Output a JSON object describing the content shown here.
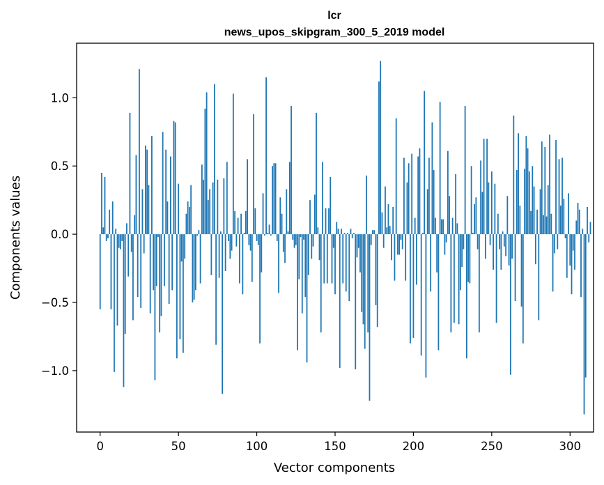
{
  "chart_data": {
    "type": "bar",
    "title": "lcr",
    "subtitle": "news_upos_skipgram_300_5_2019 model",
    "xlabel": "Vector components",
    "ylabel": "Components values",
    "xlim": [
      -15,
      315
    ],
    "ylim": [
      -1.45,
      1.4
    ],
    "xticks": [
      0,
      50,
      100,
      150,
      200,
      250,
      300
    ],
    "xtick_labels": [
      "0",
      "50",
      "100",
      "150",
      "200",
      "250",
      "300"
    ],
    "yticks": [
      -1.0,
      -0.5,
      0.0,
      0.5,
      1.0
    ],
    "ytick_labels": [
      "−1.0",
      "−0.5",
      "0.0",
      "0.5",
      "1.0"
    ],
    "bar_color": "#1f77b4",
    "values": [
      -0.55,
      0.45,
      0.05,
      0.42,
      -0.05,
      -0.03,
      0.18,
      -0.55,
      0.24,
      -1.01,
      0.04,
      -0.67,
      -0.1,
      -0.11,
      -0.05,
      -1.12,
      -0.73,
      0.08,
      -0.31,
      0.89,
      -0.13,
      -0.63,
      0.14,
      0.58,
      -0.46,
      1.21,
      -0.54,
      0.33,
      -0.14,
      0.65,
      0.62,
      0.36,
      -0.58,
      0.72,
      -0.41,
      -1.07,
      -0.38,
      -0.02,
      -0.72,
      -0.6,
      0.75,
      -0.38,
      0.62,
      0.24,
      -0.51,
      0.57,
      -0.41,
      0.83,
      0.82,
      -0.91,
      0.37,
      -0.77,
      -0.2,
      -0.87,
      -0.18,
      0.15,
      0.24,
      0.2,
      0.36,
      -0.5,
      -0.48,
      -0.41,
      -0.01,
      0.03,
      -0.36,
      0.51,
      0.4,
      0.92,
      1.04,
      0.25,
      0.33,
      -0.3,
      0.38,
      1.1,
      -0.81,
      0.4,
      -0.32,
      0.02,
      -1.17,
      0.41,
      -0.27,
      0.53,
      -0.05,
      -0.18,
      -0.12,
      1.03,
      0.17,
      -0.09,
      0.12,
      -0.36,
      0.15,
      -0.44,
      0.01,
      0.17,
      0.55,
      -0.08,
      -0.12,
      -0.35,
      0.88,
      0.19,
      -0.05,
      -0.08,
      -0.8,
      -0.28,
      0.3,
      -0.01,
      1.15,
      0.01,
      0.07,
      -0.01,
      0.5,
      0.52,
      0.52,
      -0.05,
      -0.43,
      0.27,
      0.15,
      -0.13,
      -0.21,
      0.33,
      0.02,
      0.53,
      0.94,
      -0.04,
      -0.1,
      -0.08,
      -0.85,
      -0.33,
      -0.02,
      -0.58,
      -0.04,
      -0.46,
      -0.94,
      -0.3,
      0.25,
      -0.18,
      -0.09,
      0.29,
      0.89,
      0.05,
      -0.19,
      -0.72,
      0.53,
      -0.36,
      0.19,
      -0.36,
      0.19,
      0.42,
      -0.36,
      -0.1,
      -0.44,
      0.09,
      0.04,
      -0.98,
      0.04,
      -0.36,
      0.01,
      -0.42,
      0.01,
      -0.49,
      0.04,
      -0.03,
      0.01,
      -0.99,
      -0.17,
      -0.1,
      -0.28,
      -0.57,
      -0.66,
      -0.84,
      0.43,
      -0.72,
      -1.22,
      -0.08,
      0.03,
      0.03,
      -0.52,
      -0.68,
      1.12,
      1.27,
      0.16,
      -0.1,
      0.35,
      0.05,
      0.22,
      0.06,
      -0.19,
      0.2,
      -0.34,
      0.85,
      -0.15,
      -0.15,
      -0.04,
      -0.11,
      0.56,
      -0.34,
      0.38,
      0.52,
      -0.8,
      0.59,
      -0.76,
      0.12,
      -0.37,
      0.57,
      0.63,
      -0.89,
      0.01,
      1.05,
      -1.05,
      0.33,
      0.56,
      -0.42,
      0.82,
      0.47,
      0.12,
      -0.28,
      -0.85,
      0.97,
      0.11,
      0.11,
      -0.15,
      -0.06,
      0.61,
      0.28,
      -0.72,
      0.12,
      -0.65,
      0.44,
      0.08,
      -0.66,
      -0.41,
      -0.24,
      -0.11,
      0.94,
      -0.91,
      -0.35,
      -0.36,
      0.5,
      0.01,
      0.22,
      0.27,
      -0.11,
      -0.72,
      0.54,
      0.31,
      0.7,
      -0.18,
      0.7,
      0.38,
      -0.08,
      0.46,
      -0.26,
      0.37,
      -0.65,
      0.15,
      -0.11,
      -0.26,
      0.02,
      -0.09,
      -0.16,
      0.28,
      -0.23,
      -1.03,
      -0.18,
      0.87,
      -0.49,
      0.47,
      0.74,
      0.21,
      -0.53,
      -0.8,
      0.48,
      0.72,
      0.63,
      0.46,
      0.17,
      0.5,
      0.35,
      -0.22,
      0.18,
      -0.63,
      0.33,
      0.68,
      0.14,
      0.64,
      0.13,
      0.36,
      0.73,
      0.15,
      -0.42,
      -0.14,
      0.69,
      -0.11,
      0.55,
      0.21,
      0.56,
      0.26,
      -0.03,
      -0.32,
      0.3,
      -0.23,
      -0.44,
      -0.12,
      -0.26,
      0.1,
      0.23,
      0.18,
      -0.46,
      0.04,
      -1.32,
      -1.05,
      0.2,
      -0.06,
      0.09
    ]
  }
}
